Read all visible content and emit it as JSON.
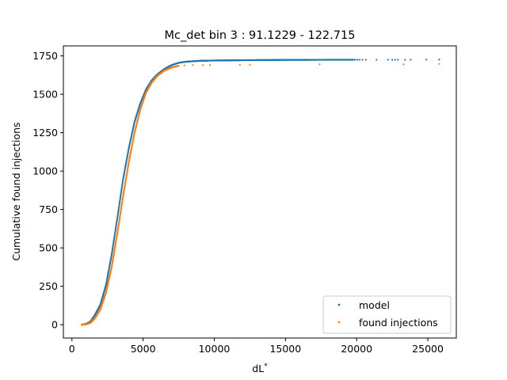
{
  "chart_data": {
    "type": "scatter",
    "title": "Mc_det bin 3 : 91.1229 - 122.715",
    "xlabel": "dL",
    "xlabel_superscript": "*",
    "ylabel": "Cumulative found injections",
    "xlim": [
      -600,
      27000
    ],
    "ylim": [
      -87,
      1815
    ],
    "xticks": [
      0,
      5000,
      10000,
      15000,
      20000,
      25000
    ],
    "yticks": [
      0,
      250,
      500,
      750,
      1000,
      1250,
      1500,
      1750
    ],
    "legend_position": "lower right",
    "grid": false,
    "colors": {
      "model": "#1f77b4",
      "found": "#ff7f0e"
    },
    "series": [
      {
        "name": "model",
        "color": "#1f77b4",
        "curve": [
          [
            700,
            0
          ],
          [
            1000,
            5
          ],
          [
            1300,
            20
          ],
          [
            1600,
            60
          ],
          [
            2000,
            130
          ],
          [
            2400,
            260
          ],
          [
            2800,
            460
          ],
          [
            3200,
            700
          ],
          [
            3600,
            950
          ],
          [
            4000,
            1150
          ],
          [
            4400,
            1320
          ],
          [
            4800,
            1440
          ],
          [
            5200,
            1530
          ],
          [
            5600,
            1590
          ],
          [
            6000,
            1630
          ],
          [
            6500,
            1665
          ],
          [
            7000,
            1690
          ],
          [
            7500,
            1705
          ],
          [
            8000,
            1712
          ],
          [
            9000,
            1718
          ],
          [
            10000,
            1720
          ],
          [
            12000,
            1722
          ],
          [
            15000,
            1724
          ],
          [
            19800,
            1725
          ]
        ],
        "sparse_points": [
          [
            19900,
            1725
          ],
          [
            20050,
            1725
          ],
          [
            20200,
            1725
          ],
          [
            20400,
            1725
          ],
          [
            20650,
            1725
          ],
          [
            21400,
            1725
          ],
          [
            22200,
            1725
          ],
          [
            22500,
            1725
          ],
          [
            22700,
            1725
          ],
          [
            22900,
            1725
          ],
          [
            23400,
            1725
          ],
          [
            23800,
            1725
          ],
          [
            24900,
            1726
          ],
          [
            25800,
            1726
          ]
        ]
      },
      {
        "name": "found injections",
        "color": "#ff7f0e",
        "curve": [
          [
            700,
            0
          ],
          [
            1000,
            3
          ],
          [
            1300,
            12
          ],
          [
            1600,
            40
          ],
          [
            2000,
            100
          ],
          [
            2400,
            210
          ],
          [
            2800,
            380
          ],
          [
            3200,
            600
          ],
          [
            3600,
            840
          ],
          [
            4000,
            1060
          ],
          [
            4400,
            1250
          ],
          [
            4800,
            1400
          ],
          [
            5200,
            1510
          ],
          [
            5600,
            1575
          ],
          [
            6000,
            1620
          ],
          [
            6500,
            1655
          ],
          [
            7000,
            1675
          ],
          [
            7500,
            1685
          ]
        ],
        "sparse_points": [
          [
            7900,
            1688
          ],
          [
            8500,
            1690
          ],
          [
            9200,
            1690
          ],
          [
            9700,
            1690
          ],
          [
            11800,
            1692
          ],
          [
            12500,
            1692
          ],
          [
            17400,
            1695
          ],
          [
            23300,
            1695
          ],
          [
            25800,
            1698
          ]
        ]
      }
    ]
  }
}
